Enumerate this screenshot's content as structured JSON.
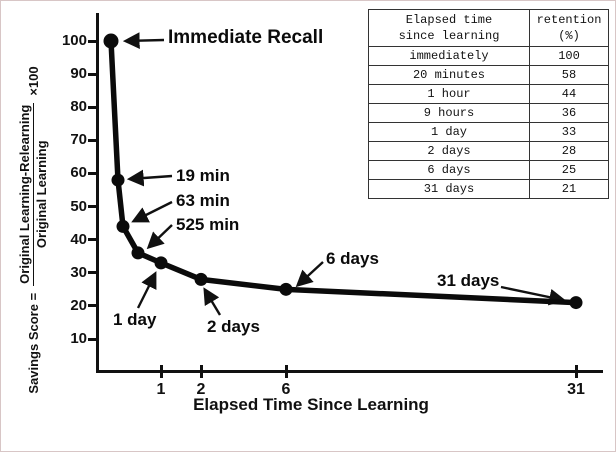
{
  "figure": {
    "y_axis_label": {
      "prefix": "Savings Score =",
      "numerator": "Original Learning-Relearning",
      "denominator": "Original Learning",
      "suffix": "×100"
    }
  },
  "table": {
    "headers": [
      [
        "Elapsed time",
        "since learning"
      ],
      [
        "retention",
        "(%)"
      ]
    ],
    "rows": [
      [
        "immediately",
        "100"
      ],
      [
        "20 minutes",
        "58"
      ],
      [
        "1 hour",
        "44"
      ],
      [
        "9 hours",
        "36"
      ],
      [
        "1 day",
        "33"
      ],
      [
        "2 days",
        "28"
      ],
      [
        "6 days",
        "25"
      ],
      [
        "31 days",
        "21"
      ]
    ]
  },
  "chart_data": {
    "type": "line",
    "title": "",
    "xlabel": "Elapsed Time Since Learning",
    "ylabel": "Savings Score = (Original Learning - Relearning) / Original Learning × 100",
    "x_tick_labels": [
      "1",
      "2",
      "6",
      "31"
    ],
    "x_tick_days": [
      1,
      2,
      6,
      31
    ],
    "y_ticks": [
      100,
      90,
      80,
      70,
      60,
      50,
      40,
      30,
      20,
      10
    ],
    "ylim": [
      0,
      100
    ],
    "grid": false,
    "legend": "none",
    "points": [
      {
        "annotation": "Immediate Recall",
        "elapsed": "immediately",
        "retention": 100
      },
      {
        "annotation": "19 min",
        "elapsed": "20 minutes",
        "retention": 58
      },
      {
        "annotation": "63 min",
        "elapsed": "1 hour",
        "retention": 44
      },
      {
        "annotation": "525 min",
        "elapsed": "9 hours",
        "retention": 36
      },
      {
        "annotation": "1 day",
        "elapsed": "1 day",
        "retention": 33
      },
      {
        "annotation": "2 days",
        "elapsed": "2 days",
        "retention": 28
      },
      {
        "annotation": "6 days",
        "elapsed": "6 days",
        "retention": 25
      },
      {
        "annotation": "31 days",
        "elapsed": "31 days",
        "retention": 21
      }
    ]
  }
}
